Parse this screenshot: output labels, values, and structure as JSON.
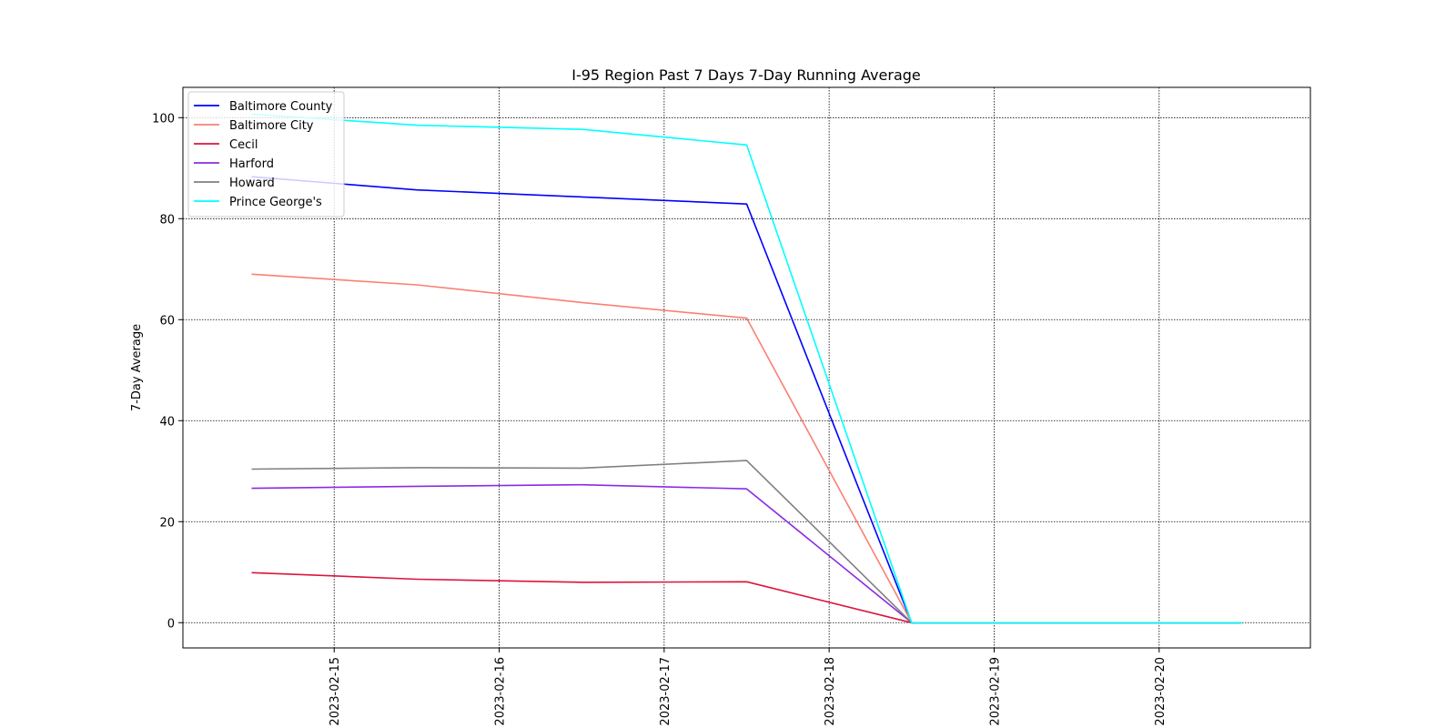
{
  "chart_data": {
    "type": "line",
    "title": "I-95 Region Past 7 Days 7-Day Running Average",
    "xlabel": "",
    "ylabel": "7-Day Average",
    "x": [
      "2023-02-14 12:00",
      "2023-02-15 12:00",
      "2023-02-16 12:00",
      "2023-02-17 12:00",
      "2023-02-18 12:00",
      "2023-02-19 12:00",
      "2023-02-20 12:00"
    ],
    "xlim": [
      "2023-02-14 02:00",
      "2023-02-20 22:00"
    ],
    "xticks": [
      "2023-02-15",
      "2023-02-16",
      "2023-02-17",
      "2023-02-18",
      "2023-02-19",
      "2023-02-20"
    ],
    "ylim": [
      -5,
      106
    ],
    "yticks": [
      0,
      20,
      40,
      60,
      80,
      100
    ],
    "grid": true,
    "legend_position": "upper left",
    "series": [
      {
        "name": "Baltimore County",
        "color": "#0000ff",
        "values": [
          88.3,
          85.7,
          84.3,
          82.9,
          0,
          0,
          0
        ]
      },
      {
        "name": "Baltimore City",
        "color": "#fa8072",
        "values": [
          69.0,
          66.9,
          63.4,
          60.3,
          0,
          0,
          0
        ]
      },
      {
        "name": "Cecil",
        "color": "#dc143c",
        "values": [
          9.9,
          8.6,
          8.0,
          8.1,
          0,
          0,
          0
        ]
      },
      {
        "name": "Harford",
        "color": "#8a2be2",
        "values": [
          26.6,
          27.0,
          27.3,
          26.5,
          0,
          0,
          0
        ]
      },
      {
        "name": "Howard",
        "color": "#808080",
        "values": [
          30.4,
          30.7,
          30.6,
          32.1,
          0,
          0,
          0
        ]
      },
      {
        "name": "Prince George's",
        "color": "#00ffff",
        "values": [
          100.7,
          98.5,
          97.7,
          94.6,
          0,
          0,
          0
        ]
      }
    ]
  }
}
